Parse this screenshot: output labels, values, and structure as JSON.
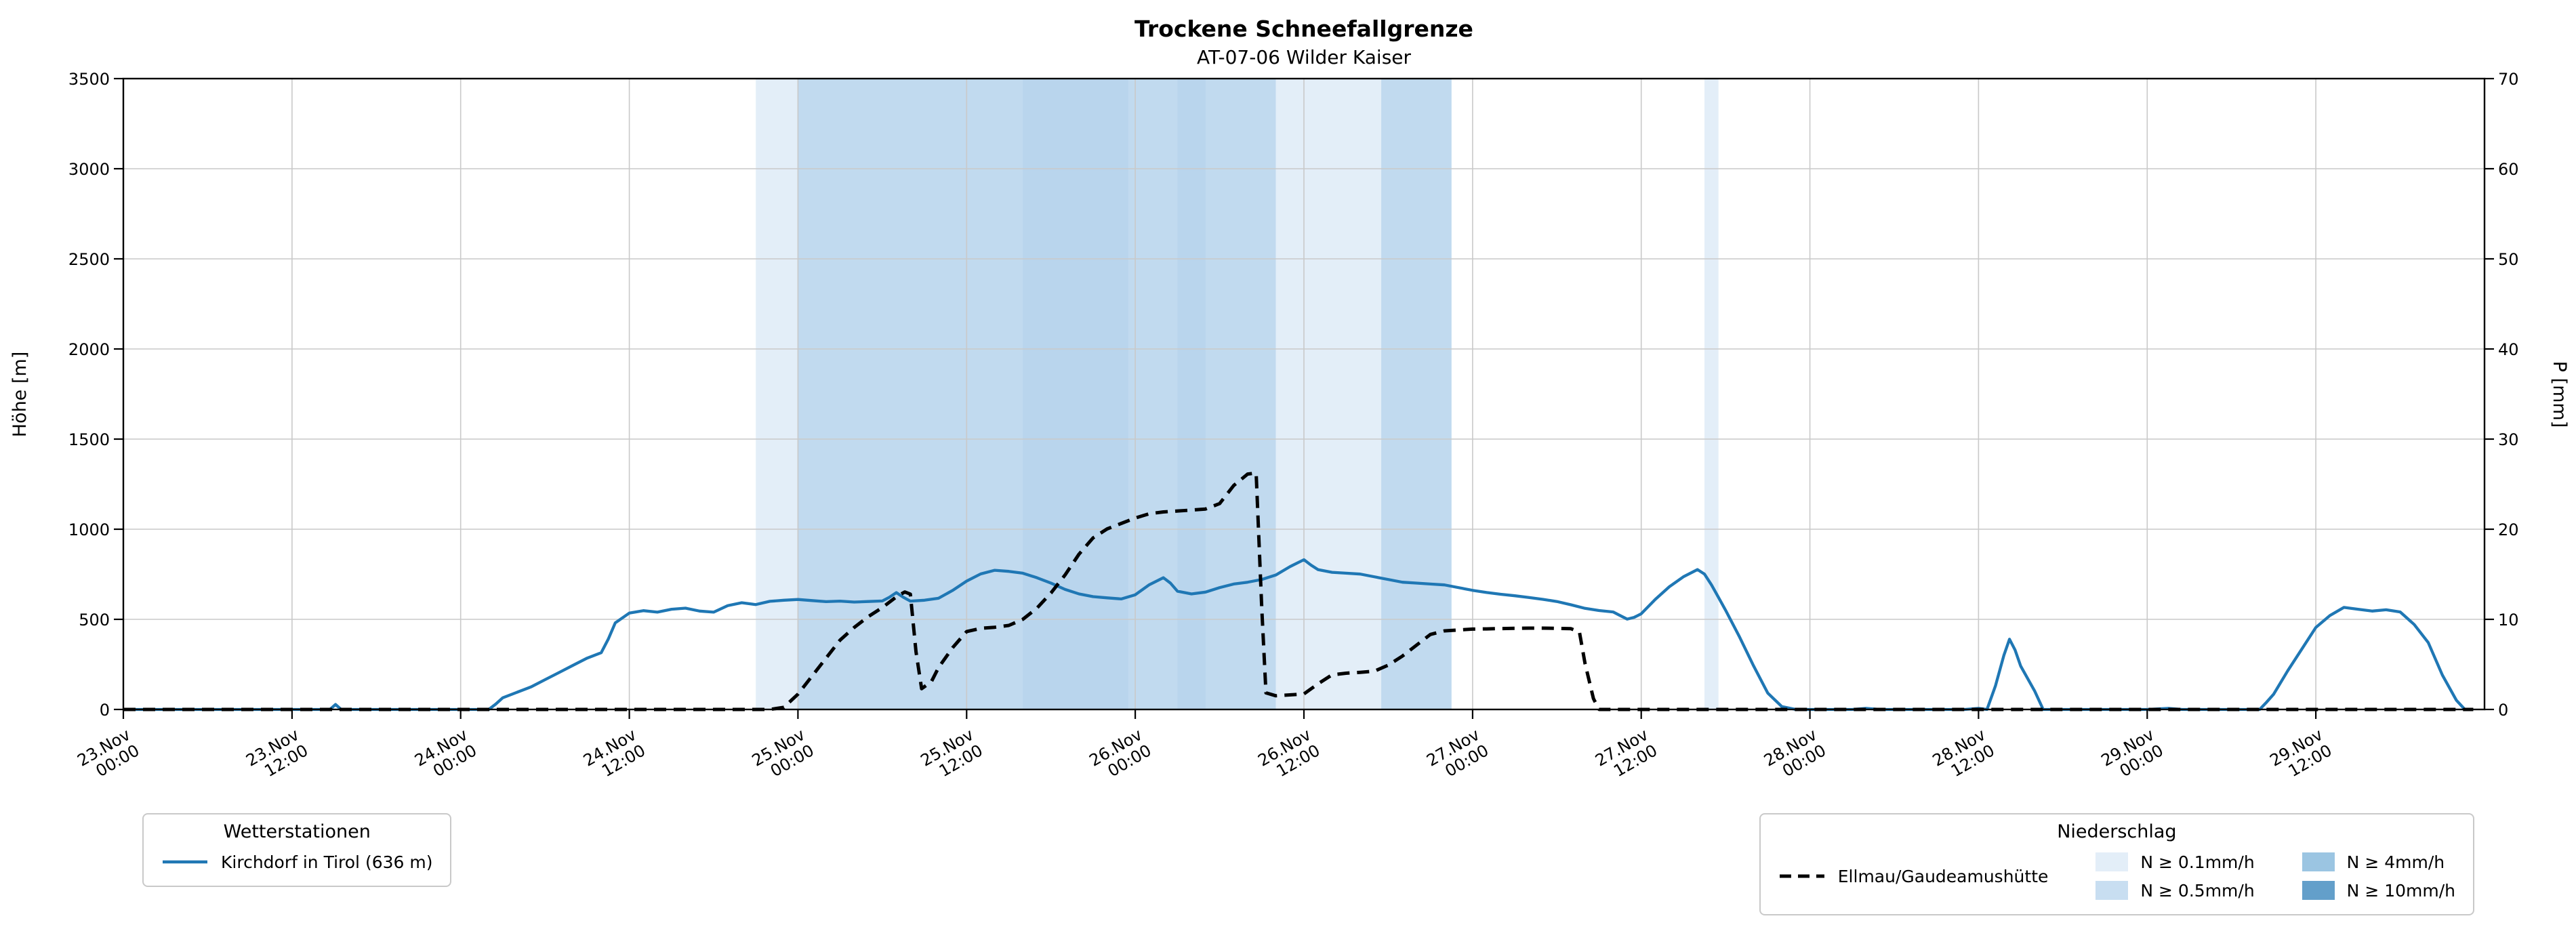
{
  "chart_data": {
    "type": "line",
    "title": "Trockene Schneefallgrenze",
    "subtitle": "AT-07-06 Wilder Kaiser",
    "ylabel_left": "Höhe [m]",
    "ylabel_right": "P [mm]",
    "x_unit": "hours since 23.Nov 00:00",
    "x_range": [
      0,
      168
    ],
    "ylim_left": [
      0,
      3500
    ],
    "ylim_right": [
      0,
      70
    ],
    "grid": true,
    "y_ticks_left": [
      0,
      500,
      1000,
      1500,
      2000,
      2500,
      3000,
      3500
    ],
    "y_ticks_right": [
      0,
      10,
      20,
      30,
      40,
      50,
      60,
      70
    ],
    "x_ticks": [
      {
        "h": 0,
        "date": "23.Nov",
        "time": "00:00"
      },
      {
        "h": 12,
        "date": "23.Nov",
        "time": "12:00"
      },
      {
        "h": 24,
        "date": "24.Nov",
        "time": "00:00"
      },
      {
        "h": 36,
        "date": "24.Nov",
        "time": "12:00"
      },
      {
        "h": 48,
        "date": "25.Nov",
        "time": "00:00"
      },
      {
        "h": 60,
        "date": "25.Nov",
        "time": "12:00"
      },
      {
        "h": 72,
        "date": "26.Nov",
        "time": "00:00"
      },
      {
        "h": 84,
        "date": "26.Nov",
        "time": "12:00"
      },
      {
        "h": 96,
        "date": "27.Nov",
        "time": "00:00"
      },
      {
        "h": 108,
        "date": "27.Nov",
        "time": "12:00"
      },
      {
        "h": 120,
        "date": "28.Nov",
        "time": "00:00"
      },
      {
        "h": 132,
        "date": "28.Nov",
        "time": "12:00"
      },
      {
        "h": 144,
        "date": "29.Nov",
        "time": "00:00"
      },
      {
        "h": 156,
        "date": "29.Nov",
        "time": "12:00"
      }
    ],
    "series": [
      {
        "name": "Kirchdorf in Tirol (636 m)",
        "color": "#1f77b4",
        "line": "solid",
        "points": [
          [
            0,
            0
          ],
          [
            3,
            0
          ],
          [
            6,
            0
          ],
          [
            9,
            0
          ],
          [
            12,
            0
          ],
          [
            14.7,
            0
          ],
          [
            15.1,
            28
          ],
          [
            15.5,
            0
          ],
          [
            18,
            0
          ],
          [
            21,
            0
          ],
          [
            24,
            0
          ],
          [
            26,
            0
          ],
          [
            26.5,
            30
          ],
          [
            27,
            65
          ],
          [
            28,
            95
          ],
          [
            29,
            125
          ],
          [
            30,
            165
          ],
          [
            31,
            205
          ],
          [
            32,
            245
          ],
          [
            33,
            285
          ],
          [
            34,
            315
          ],
          [
            34.5,
            390
          ],
          [
            35,
            480
          ],
          [
            36,
            535
          ],
          [
            37,
            548
          ],
          [
            38,
            540
          ],
          [
            39,
            556
          ],
          [
            40,
            562
          ],
          [
            41,
            546
          ],
          [
            42,
            540
          ],
          [
            43,
            576
          ],
          [
            44,
            592
          ],
          [
            45,
            582
          ],
          [
            46,
            600
          ],
          [
            47,
            606
          ],
          [
            48,
            610
          ],
          [
            49,
            604
          ],
          [
            50,
            598
          ],
          [
            51,
            601
          ],
          [
            52,
            596
          ],
          [
            53,
            599
          ],
          [
            54,
            602
          ],
          [
            54.5,
            622
          ],
          [
            55,
            648
          ],
          [
            55.5,
            622
          ],
          [
            56,
            601
          ],
          [
            57,
            606
          ],
          [
            58,
            617
          ],
          [
            59,
            660
          ],
          [
            60,
            712
          ],
          [
            61,
            752
          ],
          [
            62,
            772
          ],
          [
            63,
            766
          ],
          [
            64,
            756
          ],
          [
            65,
            731
          ],
          [
            66,
            701
          ],
          [
            67,
            666
          ],
          [
            68,
            641
          ],
          [
            69,
            626
          ],
          [
            70,
            619
          ],
          [
            71,
            613
          ],
          [
            72,
            636
          ],
          [
            73,
            692
          ],
          [
            74,
            731
          ],
          [
            74.5,
            701
          ],
          [
            75,
            656
          ],
          [
            76,
            641
          ],
          [
            77,
            651
          ],
          [
            78,
            676
          ],
          [
            79,
            696
          ],
          [
            80,
            706
          ],
          [
            81,
            721
          ],
          [
            82,
            746
          ],
          [
            83,
            792
          ],
          [
            84,
            831
          ],
          [
            84.5,
            801
          ],
          [
            85,
            776
          ],
          [
            86,
            761
          ],
          [
            87,
            756
          ],
          [
            88,
            751
          ],
          [
            89,
            736
          ],
          [
            90,
            721
          ],
          [
            91,
            706
          ],
          [
            92,
            701
          ],
          [
            93,
            696
          ],
          [
            94,
            691
          ],
          [
            95,
            676
          ],
          [
            96,
            661
          ],
          [
            97,
            649
          ],
          [
            98,
            639
          ],
          [
            99,
            631
          ],
          [
            100,
            621
          ],
          [
            101,
            611
          ],
          [
            102,
            599
          ],
          [
            103,
            581
          ],
          [
            104,
            561
          ],
          [
            105,
            549
          ],
          [
            106,
            541
          ],
          [
            106.5,
            521
          ],
          [
            107,
            501
          ],
          [
            107.5,
            511
          ],
          [
            108,
            531
          ],
          [
            109,
            611
          ],
          [
            110,
            681
          ],
          [
            111,
            736
          ],
          [
            112,
            776
          ],
          [
            112.5,
            751
          ],
          [
            113,
            691
          ],
          [
            113.5,
            621
          ],
          [
            114,
            551
          ],
          [
            115,
            401
          ],
          [
            116,
            241
          ],
          [
            117,
            91
          ],
          [
            118,
            16
          ],
          [
            119,
            0
          ],
          [
            121,
            0
          ],
          [
            123,
            0
          ],
          [
            124,
            6
          ],
          [
            125,
            0
          ],
          [
            128,
            0
          ],
          [
            131,
            0
          ],
          [
            132,
            6
          ],
          [
            132.6,
            0
          ],
          [
            133.2,
            130
          ],
          [
            133.8,
            300
          ],
          [
            134.2,
            390
          ],
          [
            134.6,
            330
          ],
          [
            135,
            241
          ],
          [
            136,
            101
          ],
          [
            136.6,
            0
          ],
          [
            138,
            0
          ],
          [
            141,
            0
          ],
          [
            144,
            0
          ],
          [
            145.5,
            6
          ],
          [
            146.5,
            0
          ],
          [
            149,
            0
          ],
          [
            152,
            0
          ],
          [
            152.5,
            41
          ],
          [
            153,
            85
          ],
          [
            154,
            215
          ],
          [
            155,
            335
          ],
          [
            156,
            455
          ],
          [
            157,
            521
          ],
          [
            158,
            566
          ],
          [
            159,
            556
          ],
          [
            160,
            546
          ],
          [
            161,
            553
          ],
          [
            162,
            541
          ],
          [
            163,
            471
          ],
          [
            164,
            371
          ],
          [
            165,
            191
          ],
          [
            166,
            51
          ],
          [
            166.6,
            0
          ],
          [
            167.2,
            0
          ]
        ]
      },
      {
        "name": "Ellmau/Gaudeamushütte",
        "color": "#000000",
        "line": "dashed",
        "points": [
          [
            0,
            0
          ],
          [
            6,
            0
          ],
          [
            12,
            0
          ],
          [
            18,
            0
          ],
          [
            24,
            0
          ],
          [
            30,
            0
          ],
          [
            36,
            0
          ],
          [
            40,
            0
          ],
          [
            44,
            0
          ],
          [
            46,
            0
          ],
          [
            47,
            12
          ],
          [
            48,
            85
          ],
          [
            49,
            185
          ],
          [
            50,
            285
          ],
          [
            51,
            385
          ],
          [
            52,
            455
          ],
          [
            53,
            515
          ],
          [
            54,
            565
          ],
          [
            55,
            625
          ],
          [
            55.6,
            652
          ],
          [
            56,
            640
          ],
          [
            56.4,
            320
          ],
          [
            56.8,
            115
          ],
          [
            57.5,
            155
          ],
          [
            58,
            232
          ],
          [
            59,
            342
          ],
          [
            60,
            432
          ],
          [
            61,
            450
          ],
          [
            62,
            456
          ],
          [
            63,
            466
          ],
          [
            64,
            500
          ],
          [
            65,
            562
          ],
          [
            66,
            646
          ],
          [
            67,
            746
          ],
          [
            68,
            862
          ],
          [
            69,
            952
          ],
          [
            70,
            1002
          ],
          [
            71,
            1032
          ],
          [
            72,
            1062
          ],
          [
            73,
            1086
          ],
          [
            74,
            1096
          ],
          [
            75,
            1101
          ],
          [
            76,
            1106
          ],
          [
            77,
            1112
          ],
          [
            78,
            1142
          ],
          [
            79,
            1242
          ],
          [
            80,
            1306
          ],
          [
            80.6,
            1312
          ],
          [
            81,
            560
          ],
          [
            81.3,
            92
          ],
          [
            82,
            76
          ],
          [
            83,
            81
          ],
          [
            84,
            86
          ],
          [
            85,
            142
          ],
          [
            86,
            192
          ],
          [
            87,
            201
          ],
          [
            88,
            206
          ],
          [
            89,
            212
          ],
          [
            90,
            246
          ],
          [
            91,
            296
          ],
          [
            92,
            356
          ],
          [
            93,
            416
          ],
          [
            94,
            436
          ],
          [
            95,
            441
          ],
          [
            96,
            446
          ],
          [
            97,
            447
          ],
          [
            98,
            449
          ],
          [
            99,
            450
          ],
          [
            100,
            451
          ],
          [
            101,
            451
          ],
          [
            102,
            450
          ],
          [
            103,
            448
          ],
          [
            103.6,
            430
          ],
          [
            104,
            255
          ],
          [
            104.6,
            60
          ],
          [
            105,
            0
          ],
          [
            108,
            0
          ],
          [
            112,
            0
          ],
          [
            116,
            0
          ],
          [
            120,
            0
          ],
          [
            126,
            0
          ],
          [
            132,
            0
          ],
          [
            138,
            0
          ],
          [
            144,
            0
          ],
          [
            150,
            0
          ],
          [
            156,
            0
          ],
          [
            162,
            0
          ],
          [
            167.2,
            0
          ]
        ]
      }
    ],
    "precip_bands": [
      {
        "start": 45,
        "end": 94.5,
        "level": "0.1"
      },
      {
        "start": 112.5,
        "end": 113.5,
        "level": "0.1"
      },
      {
        "start": 48,
        "end": 82,
        "level": "0.5"
      },
      {
        "start": 89.5,
        "end": 94.5,
        "level": "0.5"
      },
      {
        "start": 64,
        "end": 71.5,
        "level": "0.5"
      },
      {
        "start": 75,
        "end": 77,
        "level": "0.5"
      }
    ]
  },
  "legend_stations": {
    "title": "Wetterstationen",
    "items": [
      {
        "label": "Kirchdorf in Tirol (636 m)",
        "color": "#1f77b4"
      }
    ]
  },
  "legend_precip": {
    "title": "Niederschlag",
    "line_item": {
      "label": "Ellmau/Gaudeamushütte"
    },
    "levels": [
      {
        "key": "0.1",
        "label": "N ≥ 0.1mm/h",
        "color": "#d9e8f5"
      },
      {
        "key": "0.5",
        "label": "N ≥ 0.5mm/h",
        "color": "#b5d3ec"
      },
      {
        "key": "4",
        "label": "N ≥ 4mm/h",
        "color": "#7ab1d8"
      },
      {
        "key": "10",
        "label": "N ≥ 10mm/h",
        "color": "#2f7fb8"
      }
    ]
  }
}
